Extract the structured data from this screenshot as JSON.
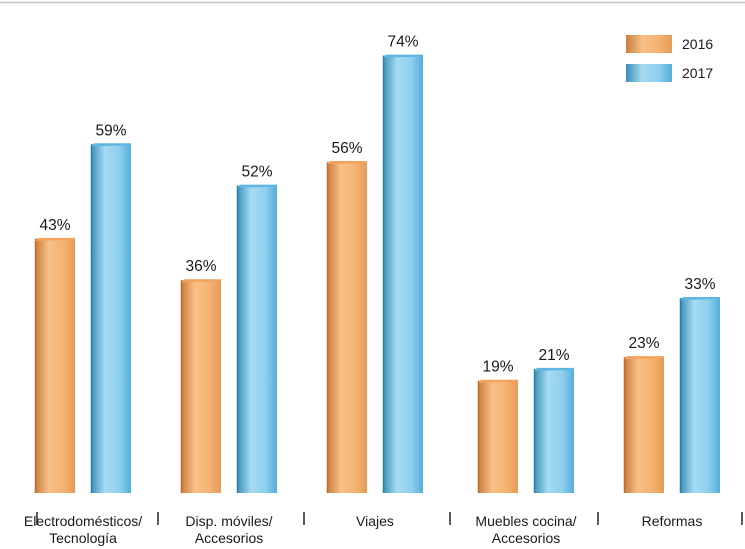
{
  "chart_data": {
    "type": "bar",
    "title": "",
    "xlabel": "",
    "ylabel": "",
    "ylim": [
      0,
      80
    ],
    "grid": false,
    "legend_position": "top-right",
    "categories": [
      [
        "Electrodomésticos/",
        "Tecnología"
      ],
      [
        "Disp. móviles/",
        "Accesorios"
      ],
      [
        "Viajes"
      ],
      [
        "Muebles cocina/",
        "Accesorios"
      ],
      [
        "Reformas"
      ]
    ],
    "series": [
      {
        "name": "2016",
        "values": [
          43,
          36,
          56,
          19,
          23
        ],
        "labels": [
          "43%",
          "36%",
          "56%",
          "19%",
          "23%"
        ],
        "color": "#f0a96a"
      },
      {
        "name": "2017",
        "values": [
          59,
          52,
          74,
          21,
          33
        ],
        "labels": [
          "59%",
          "52%",
          "74%",
          "21%",
          "33%"
        ],
        "color": "#6cbfe6"
      }
    ],
    "colors": {
      "orange_light": "#fbcf9e",
      "orange_dark": "#c57a36",
      "blue_light": "#b4e2f6",
      "blue_dark": "#2f86ad",
      "top_rule": "#c8c8c8",
      "tick": "#333333"
    }
  }
}
